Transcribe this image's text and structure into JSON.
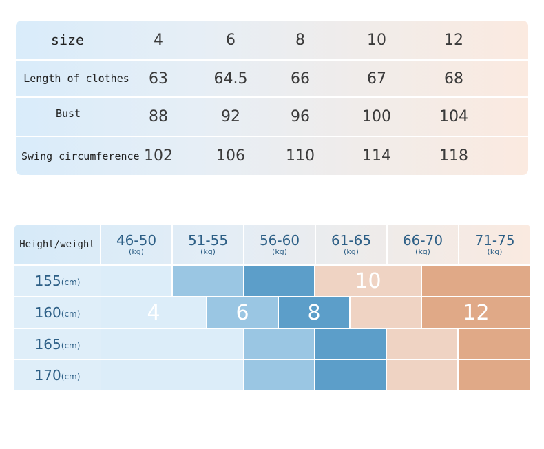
{
  "size_table": {
    "header_label": "size",
    "sizes": [
      "4",
      "6",
      "8",
      "10",
      "12"
    ],
    "rows": [
      {
        "label": "Length of clothes",
        "values": [
          "63",
          "64.5",
          "66",
          "67",
          "68"
        ]
      },
      {
        "label": "Bust",
        "values": [
          "88",
          "92",
          "96",
          "100",
          "104"
        ]
      },
      {
        "label": "Swing circumference",
        "values": [
          "102",
          "106",
          "110",
          "114",
          "118"
        ]
      }
    ]
  },
  "hw_table": {
    "corner_label": "Height/weight",
    "weight_unit": "(kg)",
    "height_unit": "(cm)",
    "weights": [
      "46-50",
      "51-55",
      "56-60",
      "61-65",
      "66-70",
      "71-75"
    ],
    "heights": [
      "155",
      "160",
      "165",
      "170"
    ],
    "size_labels": [
      "4",
      "6",
      "8",
      "10",
      "12"
    ],
    "colors": {
      "size_4": "#dcedf9",
      "size_6": "#9ac6e3",
      "size_8": "#5c9ec9",
      "size_10": "#efd3c3",
      "size_12": "#e0a987",
      "header_text": "#2d5f86"
    }
  }
}
